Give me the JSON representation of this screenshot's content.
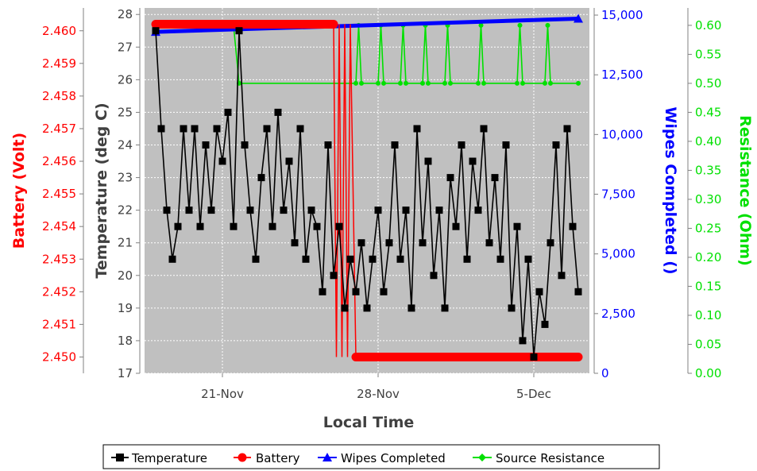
{
  "chart_data": {
    "type": "line",
    "xlabel": "Local Time",
    "x_ticks": [
      "21-Nov",
      "28-Nov",
      "5-Dec"
    ],
    "colors": {
      "temperature": "#000000",
      "battery": "#ff0000",
      "wipes": "#0000ff",
      "resistance": "#00e000",
      "plot_background": "#c0c0c0"
    },
    "axes": {
      "temperature": {
        "label": "Temperature (deg C)",
        "range": [
          17,
          28.2
        ],
        "ticks": [
          "17",
          "18",
          "19",
          "20",
          "21",
          "22",
          "23",
          "24",
          "25",
          "26",
          "27",
          "28"
        ]
      },
      "battery": {
        "label": "Battery (Volt)",
        "range": [
          2.4495,
          2.4607
        ],
        "ticks": [
          "2.450",
          "2.451",
          "2.452",
          "2.453",
          "2.454",
          "2.455",
          "2.456",
          "2.457",
          "2.458",
          "2.459",
          "2.460"
        ]
      },
      "wipes": {
        "label": "Wipes Completed ()",
        "range": [
          0,
          15300
        ],
        "ticks": [
          "0",
          "2,500",
          "5,000",
          "7,500",
          "10,000",
          "12,500",
          "15,000"
        ]
      },
      "resistance": {
        "label": "Resistance (Ohm)",
        "range": [
          0,
          0.63
        ],
        "ticks": [
          "0.00",
          "0.05",
          "0.10",
          "0.15",
          "0.20",
          "0.25",
          "0.30",
          "0.35",
          "0.40",
          "0.45",
          "0.50",
          "0.55",
          "0.60"
        ]
      }
    },
    "x_range": [
      "2025-11-17T12:00",
      "2025-12-07T12:00"
    ],
    "grid": true,
    "legend_position": "bottom",
    "series": [
      {
        "name": "Temperature",
        "axis": "temperature",
        "x": [
          "2025-11-18T00:00",
          "2025-11-18T06:00",
          "2025-11-18T12:00",
          "2025-11-18T18:00",
          "2025-11-19T00:00",
          "2025-11-19T06:00",
          "2025-11-19T12:00",
          "2025-11-19T18:00",
          "2025-11-20T00:00",
          "2025-11-20T06:00",
          "2025-11-20T12:00",
          "2025-11-20T18:00",
          "2025-11-21T00:00",
          "2025-11-21T06:00",
          "2025-11-21T12:00",
          "2025-11-21T18:00",
          "2025-11-22T00:00",
          "2025-11-22T06:00",
          "2025-11-22T12:00",
          "2025-11-22T18:00",
          "2025-11-23T00:00",
          "2025-11-23T06:00",
          "2025-11-23T12:00",
          "2025-11-23T18:00",
          "2025-11-24T00:00",
          "2025-11-24T06:00",
          "2025-11-24T12:00",
          "2025-11-24T18:00",
          "2025-11-25T00:00",
          "2025-11-25T06:00",
          "2025-11-25T12:00",
          "2025-11-25T18:00",
          "2025-11-26T00:00",
          "2025-11-26T06:00",
          "2025-11-26T12:00",
          "2025-11-26T18:00",
          "2025-11-27T00:00",
          "2025-11-27T06:00",
          "2025-11-27T12:00",
          "2025-11-27T18:00",
          "2025-11-28T00:00",
          "2025-11-28T06:00",
          "2025-11-28T12:00",
          "2025-11-28T18:00",
          "2025-11-29T00:00",
          "2025-11-29T06:00",
          "2025-11-29T12:00",
          "2025-11-29T18:00",
          "2025-11-30T00:00",
          "2025-11-30T06:00",
          "2025-11-30T12:00",
          "2025-11-30T18:00",
          "2025-12-01T00:00",
          "2025-12-01T06:00",
          "2025-12-01T12:00",
          "2025-12-01T18:00",
          "2025-12-02T00:00",
          "2025-12-02T06:00",
          "2025-12-02T12:00",
          "2025-12-02T18:00",
          "2025-12-03T00:00",
          "2025-12-03T06:00",
          "2025-12-03T12:00",
          "2025-12-03T18:00",
          "2025-12-04T00:00",
          "2025-12-04T06:00",
          "2025-12-04T12:00",
          "2025-12-04T18:00",
          "2025-12-05T00:00",
          "2025-12-05T06:00",
          "2025-12-05T12:00",
          "2025-12-05T18:00",
          "2025-12-06T00:00",
          "2025-12-06T06:00",
          "2025-12-06T12:00",
          "2025-12-06T18:00",
          "2025-12-07T00:00"
        ],
        "values": [
          27.5,
          24.5,
          22.0,
          20.5,
          21.5,
          24.5,
          22.0,
          24.5,
          21.5,
          24.0,
          22.0,
          24.5,
          23.5,
          25.0,
          21.5,
          27.5,
          24.0,
          22.0,
          20.5,
          23.0,
          24.5,
          21.5,
          25.0,
          22.0,
          23.5,
          21.0,
          24.5,
          20.5,
          22.0,
          21.5,
          19.5,
          24.0,
          20.0,
          21.5,
          19.0,
          20.5,
          19.5,
          21.0,
          19.0,
          20.5,
          22.0,
          19.5,
          21.0,
          24.0,
          20.5,
          22.0,
          19.0,
          24.5,
          21.0,
          23.5,
          20.0,
          22.0,
          19.0,
          23.0,
          21.5,
          24.0,
          20.5,
          23.5,
          22.0,
          24.5,
          21.0,
          23.0,
          20.5,
          24.0,
          19.0,
          21.5,
          18.0,
          20.5,
          17.5,
          19.5,
          18.5,
          21.0,
          24.0,
          20.0,
          24.5,
          21.5,
          19.5
        ]
      },
      {
        "name": "Battery",
        "axis": "battery",
        "x": [
          "2025-11-18T00:00",
          "2025-11-26T00:00",
          "2025-11-26T03:00",
          "2025-11-26T06:00",
          "2025-11-26T09:00",
          "2025-11-26T12:00",
          "2025-11-26T15:00",
          "2025-11-26T18:00",
          "2025-11-27T00:00",
          "2025-11-27T06:00",
          "2025-12-07T00:00"
        ],
        "values": [
          2.4602,
          2.4602,
          2.45,
          2.4602,
          2.45,
          2.4602,
          2.45,
          2.4602,
          2.45,
          2.45,
          2.45
        ]
      },
      {
        "name": "Wipes Completed",
        "axis": "wipes",
        "x": [
          "2025-11-18T00:00",
          "2025-12-07T00:00"
        ],
        "values": [
          14300,
          14850
        ]
      },
      {
        "name": "Source Resistance",
        "axis": "resistance",
        "x": [
          "2025-11-18T00:00",
          "2025-11-21T12:00",
          "2025-11-21T18:00",
          "2025-11-27T00:00",
          "2025-11-27T03:00",
          "2025-11-27T06:00",
          "2025-11-28T00:00",
          "2025-11-28T03:00",
          "2025-11-28T06:00",
          "2025-11-29T00:00",
          "2025-11-29T03:00",
          "2025-11-29T06:00",
          "2025-11-30T00:00",
          "2025-11-30T03:00",
          "2025-11-30T06:00",
          "2025-12-01T00:00",
          "2025-12-01T03:00",
          "2025-12-01T06:00",
          "2025-12-02T12:00",
          "2025-12-02T15:00",
          "2025-12-02T18:00",
          "2025-12-04T06:00",
          "2025-12-04T09:00",
          "2025-12-04T12:00",
          "2025-12-05T12:00",
          "2025-12-05T15:00",
          "2025-12-05T18:00",
          "2025-12-07T00:00"
        ],
        "values": [
          0.6,
          0.6,
          0.5,
          0.5,
          0.6,
          0.5,
          0.5,
          0.6,
          0.5,
          0.5,
          0.6,
          0.5,
          0.5,
          0.6,
          0.5,
          0.5,
          0.6,
          0.5,
          0.5,
          0.6,
          0.5,
          0.5,
          0.6,
          0.5,
          0.5,
          0.6,
          0.5,
          0.5
        ]
      }
    ]
  }
}
